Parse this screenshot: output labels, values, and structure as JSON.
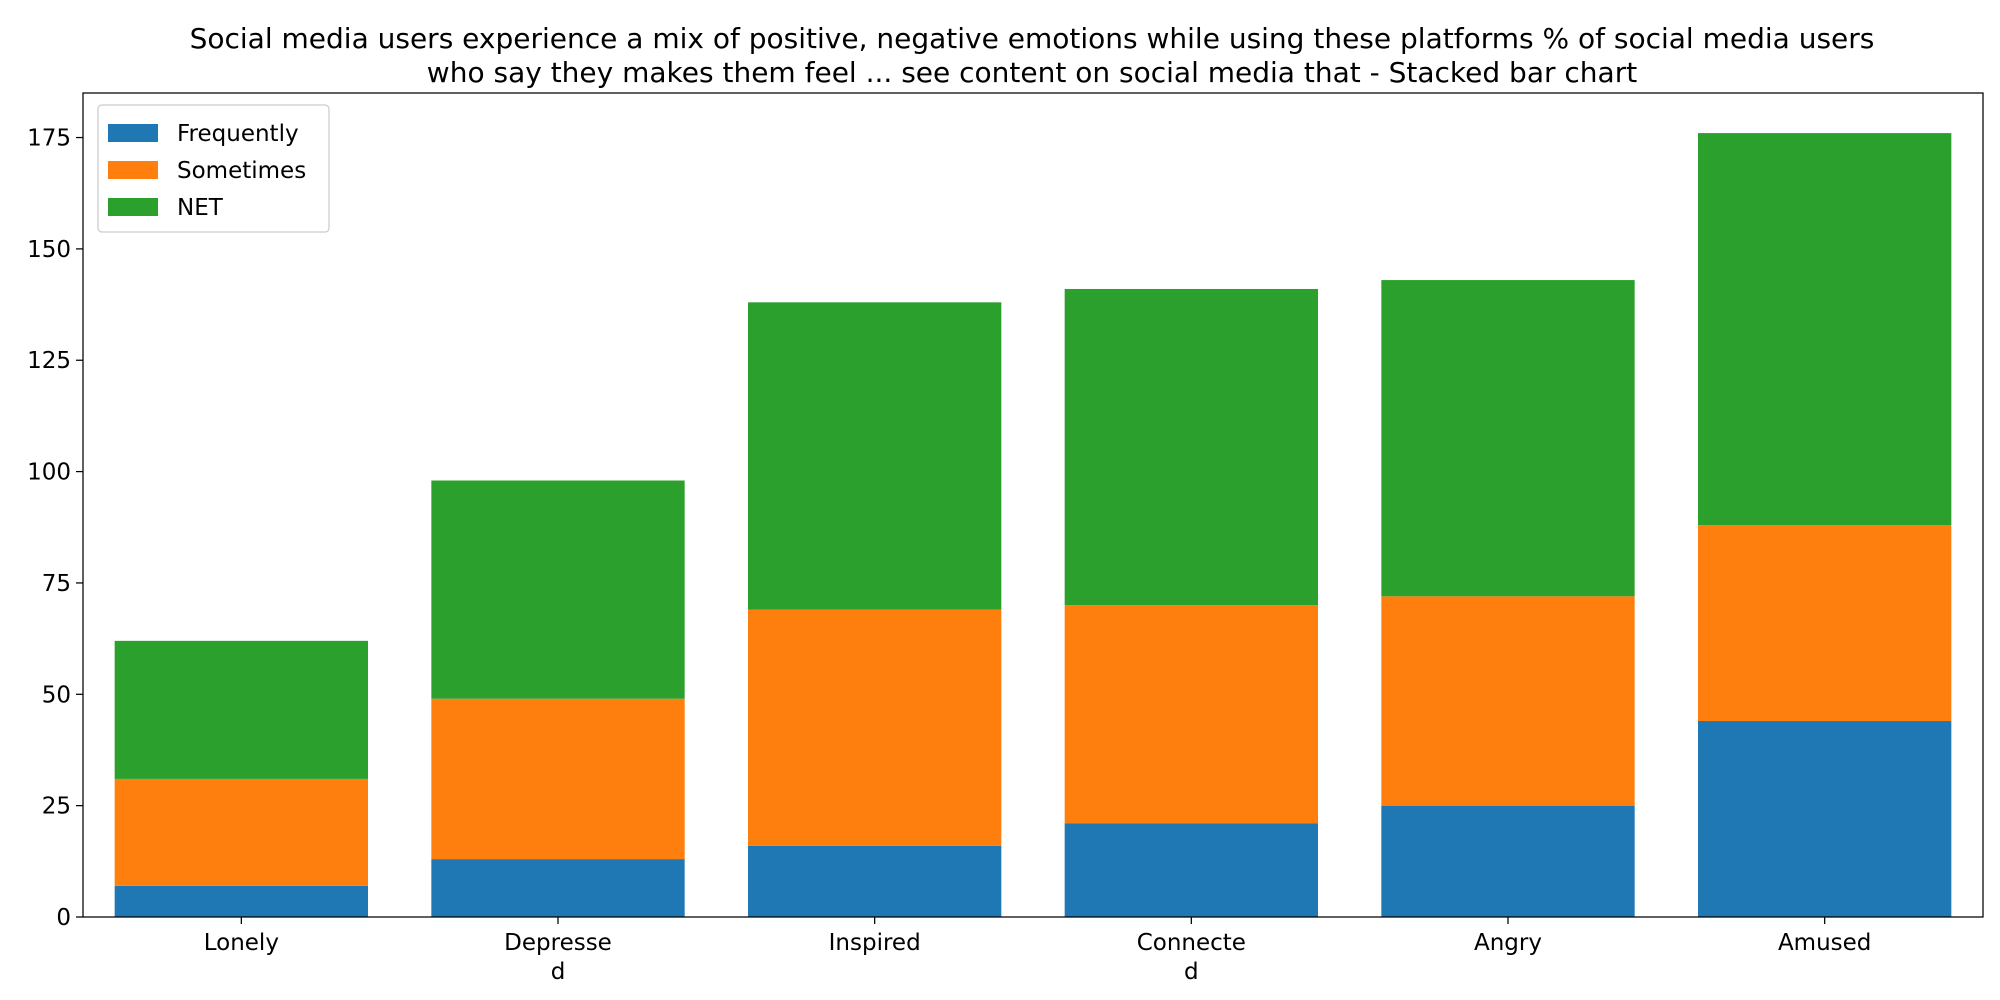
{
  "chart_data": {
    "type": "bar",
    "stacked": true,
    "title_lines": [
      "Social media users experience a mix of positive, negative emotions while using these platforms % of social media users",
      "who say they makes them feel ... see content on social media that  - Stacked bar chart"
    ],
    "categories": [
      [
        "Lonely"
      ],
      [
        "Depresse",
        "d"
      ],
      [
        "Inspired"
      ],
      [
        "Connecte",
        "d"
      ],
      [
        "Angry"
      ],
      [
        "Amused"
      ]
    ],
    "series": [
      {
        "name": "Frequently",
        "color": "#1f77b4",
        "values": [
          7,
          13,
          16,
          21,
          25,
          44
        ]
      },
      {
        "name": "Sometimes",
        "color": "#ff7f0e",
        "values": [
          24,
          36,
          53,
          49,
          47,
          44
        ]
      },
      {
        "name": "NET",
        "color": "#2ca02c",
        "values": [
          31,
          49,
          69,
          71,
          71,
          88
        ]
      }
    ],
    "ylim": [
      0,
      185
    ],
    "yticks": [
      0,
      25,
      50,
      75,
      100,
      125,
      150,
      175
    ],
    "xlabel": "",
    "ylabel": "",
    "legend_position": "top-left",
    "grid": false
  }
}
